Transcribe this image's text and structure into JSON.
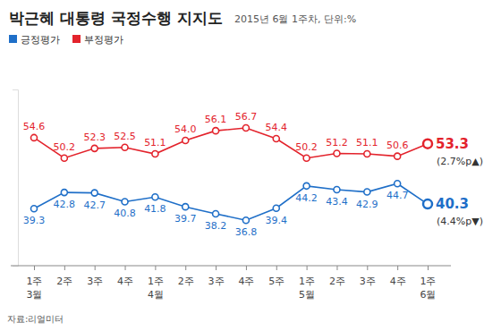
{
  "chart_data": {
    "type": "line",
    "title": "박근혜 대통령 국정수행 지지도",
    "subtitle": "2015년 6월 1주차, 단위:%",
    "source": "자료:리얼미터",
    "categories": [
      "1주\n3월",
      "2주",
      "3주",
      "4주",
      "1주\n4월",
      "2주",
      "3주",
      "4주",
      "5주",
      "1주\n5월",
      "2주",
      "3주",
      "4주",
      "1주\n6월"
    ],
    "series": [
      {
        "name": "긍정평가",
        "color": "#1f6fc8",
        "values": [
          39.3,
          42.8,
          42.7,
          40.8,
          41.8,
          39.7,
          38.2,
          36.8,
          39.4,
          44.2,
          43.4,
          42.9,
          44.7,
          40.3
        ]
      },
      {
        "name": "부정평가",
        "color": "#e3232c",
        "values": [
          54.6,
          50.2,
          52.3,
          52.5,
          51.1,
          54.0,
          56.1,
          56.7,
          54.4,
          50.2,
          51.2,
          51.1,
          50.6,
          53.3
        ],
        "value_labels": [
          "54.6",
          "50.2",
          "52.3",
          "52.5",
          "51.1",
          "54.0",
          "56.1",
          "56.7",
          "54.4",
          "50.2",
          "51.2",
          "51.1",
          "50.6",
          "53.3"
        ]
      }
    ],
    "annotations": [
      "(4.4%p▼)",
      "(2.7%p▲)"
    ],
    "ylim": [
      27,
      65
    ],
    "yticks": [],
    "grid": false,
    "legend": "top-left",
    "data_labels": true,
    "tick_labels": "x",
    "marker": "circle"
  }
}
